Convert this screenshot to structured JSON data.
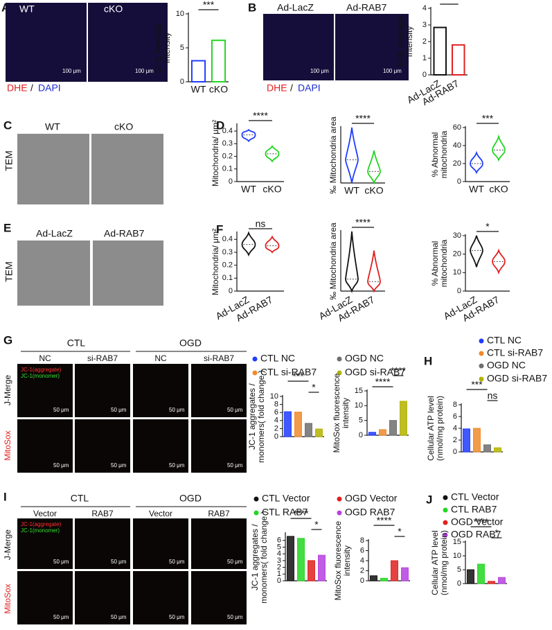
{
  "figure": {
    "A": {
      "letter": "A",
      "columns": [
        "WT",
        "cKO"
      ],
      "scale_bar": "100 μm",
      "stain": [
        "DHE",
        "/",
        "DAPI"
      ]
    },
    "B": {
      "letter": "B",
      "columns": [
        "Ad-LacZ",
        "Ad-RAB7"
      ],
      "scale_bar": "100 μm",
      "stain": [
        "DHE",
        "/",
        "DAPI"
      ]
    },
    "C": {
      "letter": "C",
      "columns": [
        "WT",
        "cKO"
      ],
      "row": "TEM"
    },
    "D": {
      "letter": "D"
    },
    "E": {
      "letter": "E",
      "columns": [
        "Ad-LacZ",
        "Ad-RAB7"
      ],
      "row": "TEM"
    },
    "F": {
      "letter": "F"
    },
    "G": {
      "letter": "G",
      "groups": [
        "CTL",
        "OGD"
      ],
      "columns": [
        "NC",
        "si-RAB7",
        "NC",
        "si-RAB7"
      ],
      "rows": [
        "J-Merge",
        "MitoSox"
      ],
      "channels": [
        "JC-1(aggregate)",
        "JC-1(monomer)"
      ],
      "scale_bar": "50 μm",
      "legend": {
        "names": [
          "CTL NC",
          "CTL si-RAB7",
          "OGD NC",
          "OGD si-RAB7"
        ],
        "colors": [
          "#1f3cff",
          "#f0892a",
          "#6e6e6e",
          "#b3b300"
        ]
      }
    },
    "H": {
      "letter": "H",
      "legend": {
        "names": [
          "CTL NC",
          "CTL si-RAB7",
          "OGD NC",
          "OGD si-RAB7"
        ],
        "colors": [
          "#1f3cff",
          "#f0892a",
          "#6e6e6e",
          "#b3b300"
        ]
      }
    },
    "I": {
      "letter": "I",
      "groups": [
        "CTL",
        "OGD"
      ],
      "columns": [
        "Vector",
        "RAB7",
        "Vector",
        "RAB7"
      ],
      "rows": [
        "J-Merge",
        "MitoSox"
      ],
      "channels": [
        "JC-1(aggregate)",
        "JC-1(monomer)"
      ],
      "scale_bar": "50 μm",
      "legend": {
        "names": [
          "CTL Vector",
          "CTL RAB7",
          "OGD Vector",
          "OGD RAB7"
        ],
        "colors": [
          "#111111",
          "#22d622",
          "#e02020",
          "#b640e0"
        ]
      }
    },
    "J": {
      "letter": "J",
      "legend": {
        "names": [
          "CTL Vector",
          "CTL RAB7",
          "OGD Vector",
          "OGD RAB7"
        ],
        "colors": [
          "#111111",
          "#22d622",
          "#e02020",
          "#b640e0"
        ]
      }
    }
  },
  "chart_data": [
    {
      "type": "bar",
      "ylabel": [
        "DHE Average",
        "Intensity"
      ],
      "categories": [
        "WT",
        "cKO"
      ],
      "values": [
        3.1,
        6.1
      ],
      "colors": [
        "#1f3cff",
        "#22d622"
      ],
      "filled": false,
      "ylim": [
        0,
        10
      ],
      "yticks": [
        0,
        5,
        10
      ],
      "annotations": [
        {
          "label": "***",
          "from": 0,
          "to": 1
        }
      ]
    },
    {
      "type": "bar",
      "ylabel": [
        "DHE Average",
        "Intensity"
      ],
      "categories": [
        "Ad-LacZ",
        "Ad-RAB7"
      ],
      "values": [
        2.85,
        1.8
      ],
      "colors": [
        "#111111",
        "#e02020"
      ],
      "filled": false,
      "ylim": [
        0,
        4
      ],
      "yticks": [
        0,
        1,
        2,
        3,
        4
      ],
      "annotations": [
        {
          "label": "**",
          "from": 0,
          "to": 1
        }
      ]
    },
    {
      "type": "violin",
      "ylabel": [
        "Mitochondria/ μm²"
      ],
      "categories": [
        "WT",
        "cKO"
      ],
      "values": [
        0.37,
        0.22
      ],
      "mins": [
        0.32,
        0.16
      ],
      "maxs": [
        0.41,
        0.28
      ],
      "colors": [
        "#1f3cff",
        "#22d622"
      ],
      "ylim": [
        0,
        0.45
      ],
      "yticks": [
        0,
        0.1,
        0.2,
        0.3,
        0.4
      ],
      "annotations": [
        {
          "label": "****",
          "from": 0,
          "to": 1
        }
      ]
    },
    {
      "type": "violin",
      "ylabel": [
        "‰ Mitochondria area"
      ],
      "categories": [
        "WT",
        "cKO"
      ],
      "values": [
        5,
        2.5
      ],
      "mins": [
        0,
        0
      ],
      "maxs": [
        12,
        7
      ],
      "colors": [
        "#1f3cff",
        "#22d622"
      ],
      "ylim": [
        0,
        12
      ],
      "annotations": [
        {
          "label": "****",
          "from": 0,
          "to": 1
        }
      ]
    },
    {
      "type": "violin",
      "ylabel": [
        "% Abnormal",
        "mitochondria"
      ],
      "categories": [
        "WT",
        "cKO"
      ],
      "values": [
        20,
        35
      ],
      "mins": [
        10,
        24
      ],
      "maxs": [
        32,
        50
      ],
      "colors": [
        "#1f3cff",
        "#22d622"
      ],
      "ylim": [
        0,
        60
      ],
      "yticks": [
        0,
        20,
        40,
        60
      ],
      "annotations": [
        {
          "label": "***",
          "from": 0,
          "to": 1
        }
      ]
    },
    {
      "type": "violin",
      "ylabel": [
        "Mitochondria/ μm²"
      ],
      "categories": [
        "Ad-LacZ",
        "Ad-RAB7"
      ],
      "values": [
        0.36,
        0.35
      ],
      "mins": [
        0.28,
        0.3
      ],
      "maxs": [
        0.45,
        0.42
      ],
      "colors": [
        "#111111",
        "#e02020"
      ],
      "ylim": [
        0,
        0.45
      ],
      "yticks": [
        0,
        0.1,
        0.2,
        0.3,
        0.4
      ],
      "annotations": [
        {
          "label": "ns",
          "from": 0,
          "to": 1
        }
      ]
    },
    {
      "type": "violin",
      "ylabel": [
        "‰ Mitochondria area"
      ],
      "categories": [
        "Ad-LacZ",
        "Ad-RAB7"
      ],
      "values": [
        5,
        4
      ],
      "mins": [
        0,
        0
      ],
      "maxs": [
        25,
        17
      ],
      "colors": [
        "#111111",
        "#e02020"
      ],
      "ylim": [
        0,
        25
      ],
      "annotations": [
        {
          "label": "****",
          "from": 0,
          "to": 1
        }
      ]
    },
    {
      "type": "violin",
      "ylabel": [
        "% Abnormal",
        "mitochondria"
      ],
      "categories": [
        "Ad-LacZ",
        "Ad-RAB7"
      ],
      "values": [
        22,
        16
      ],
      "mins": [
        13,
        10
      ],
      "maxs": [
        30,
        22
      ],
      "colors": [
        "#111111",
        "#e02020"
      ],
      "ylim": [
        0,
        30
      ],
      "yticks": [
        0,
        10,
        20,
        30
      ],
      "annotations": [
        {
          "label": "*",
          "from": 0,
          "to": 1
        }
      ]
    },
    {
      "type": "bar",
      "ylabel": [
        "JC-1 aggregates /",
        "monomers( fold change )"
      ],
      "values": [
        6.2,
        6.1,
        3.3,
        1.9
      ],
      "colors": [
        "#1f3cff",
        "#f0892a",
        "#6e6e6e",
        "#b3b300"
      ],
      "filled": true,
      "ylim": [
        0,
        10
      ],
      "yticks": [
        0,
        2,
        4,
        6,
        8,
        10
      ],
      "annotations": [
        {
          "label": "***",
          "from": 0,
          "to": 2
        },
        {
          "label": "*",
          "from": 2,
          "to": 3
        }
      ]
    },
    {
      "type": "bar",
      "ylabel": [
        "MitoSox fluorescence",
        "intensity"
      ],
      "values": [
        1.0,
        1.9,
        5.0,
        11.5
      ],
      "colors": [
        "#1f3cff",
        "#f0892a",
        "#6e6e6e",
        "#b3b300"
      ],
      "filled": true,
      "ylim": [
        0,
        15
      ],
      "yticks": [
        0,
        5,
        10,
        15
      ],
      "annotations": [
        {
          "label": "****",
          "from": 2,
          "to": 3
        },
        {
          "label": "****",
          "from": 0,
          "to": 2
        }
      ]
    },
    {
      "type": "bar",
      "ylabel": [
        "Cellular ATP level",
        "(nmol/mg protein)"
      ],
      "values": [
        3.9,
        4.0,
        1.2,
        0.7
      ],
      "colors": [
        "#1f3cff",
        "#f0892a",
        "#6e6e6e",
        "#b3b300"
      ],
      "filled": true,
      "ylim": [
        0,
        8
      ],
      "yticks": [
        0,
        2,
        4,
        6,
        8
      ],
      "annotations": [
        {
          "label": "***",
          "from": 0,
          "to": 2
        },
        {
          "label": "ns",
          "from": 2,
          "to": 3
        }
      ]
    },
    {
      "type": "bar",
      "ylabel": [
        "JC-1 aggregates /",
        "monomers( fold change )"
      ],
      "values": [
        6.6,
        6.3,
        3.0,
        3.8
      ],
      "colors": [
        "#111111",
        "#22d622",
        "#e02020",
        "#b640e0"
      ],
      "filled": true,
      "ylim": [
        0,
        7
      ],
      "yticks": [
        0,
        1,
        2,
        3,
        4,
        5,
        6
      ],
      "annotations": [
        {
          "label": "****",
          "from": 0,
          "to": 2
        },
        {
          "label": "*",
          "from": 2,
          "to": 3
        }
      ]
    },
    {
      "type": "bar",
      "ylabel": [
        "MitoSox fluorescence",
        "intensity"
      ],
      "values": [
        1.0,
        0.5,
        4.0,
        2.6
      ],
      "colors": [
        "#111111",
        "#22d622",
        "#e02020",
        "#b640e0"
      ],
      "filled": true,
      "ylim": [
        0,
        8
      ],
      "yticks": [
        0,
        2,
        4,
        6,
        8
      ],
      "annotations": [
        {
          "label": "****",
          "from": 0,
          "to": 2
        },
        {
          "label": "*",
          "from": 2,
          "to": 3
        }
      ]
    },
    {
      "type": "bar",
      "ylabel": [
        "Cellular ATP level",
        "(nmol/mg protein)"
      ],
      "values": [
        5.0,
        7.0,
        0.8,
        2.2
      ],
      "colors": [
        "#111111",
        "#22d622",
        "#e02020",
        "#b640e0"
      ],
      "filled": true,
      "ylim": [
        0,
        15
      ],
      "yticks": [
        0,
        5,
        10,
        15
      ],
      "annotations": [
        {
          "label": "****",
          "from": 0,
          "to": 2
        },
        {
          "label": "*",
          "from": 2,
          "to": 3
        }
      ]
    }
  ]
}
